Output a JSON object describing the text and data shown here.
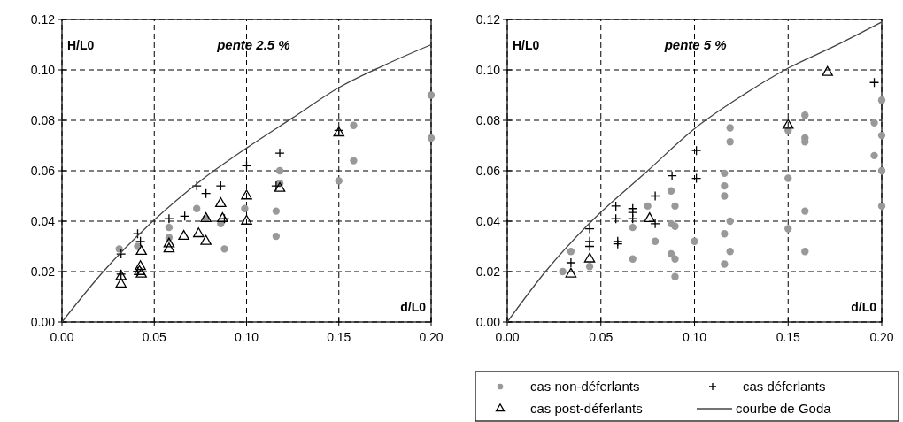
{
  "chart_data": [
    {
      "type": "scatter",
      "title": "pente 2.5 %",
      "xlabel": "d/L0",
      "ylabel": "H/L0",
      "xlim": [
        0,
        0.2
      ],
      "ylim": [
        0,
        0.12
      ],
      "xticks": [
        {
          "value": 0,
          "label": "0.00"
        },
        {
          "value": 0.05,
          "label": "0.05"
        },
        {
          "value": 0.1,
          "label": "0.10"
        },
        {
          "value": 0.15,
          "label": "0.15"
        },
        {
          "value": 0.2,
          "label": "0.20"
        }
      ],
      "yticks": [
        {
          "value": 0,
          "label": "0.00"
        },
        {
          "value": 0.02,
          "label": "0.02"
        },
        {
          "value": 0.04,
          "label": "0.04"
        },
        {
          "value": 0.06,
          "label": "0.06"
        },
        {
          "value": 0.08,
          "label": "0.08"
        },
        {
          "value": 0.1,
          "label": "0.10"
        },
        {
          "value": 0.12,
          "label": "0.12"
        }
      ],
      "grid": true,
      "legend": false,
      "series": [
        {
          "marker": "circle",
          "color": "#999999",
          "x": [
            0.031,
            0.041,
            0.058,
            0.058,
            0.073,
            0.078,
            0.086,
            0.088,
            0.099,
            0.116,
            0.116,
            0.118,
            0.118,
            0.15,
            0.158,
            0.158,
            0.2,
            0.2
          ],
          "values": [
            0.029,
            0.03,
            0.0375,
            0.0335,
            0.045,
            0.041,
            0.039,
            0.029,
            0.045,
            0.044,
            0.034,
            0.06,
            0.055,
            0.056,
            0.078,
            0.064,
            0.09,
            0.073
          ]
        },
        {
          "marker": "cross",
          "color": "#000000",
          "x": [
            0.032,
            0.032,
            0.041,
            0.0425,
            0.041,
            0.058,
            0.0665,
            0.073,
            0.078,
            0.086,
            0.088,
            0.1,
            0.118,
            0.116,
            0.15
          ],
          "values": [
            0.027,
            0.019,
            0.035,
            0.032,
            0.02,
            0.041,
            0.042,
            0.054,
            0.051,
            0.054,
            0.041,
            0.062,
            0.067,
            0.054,
            0.076
          ]
        },
        {
          "marker": "triangle",
          "color": "#000000",
          "x": [
            0.032,
            0.032,
            0.0425,
            0.042,
            0.043,
            0.043,
            0.058,
            0.058,
            0.066,
            0.074,
            0.078,
            0.078,
            0.086,
            0.087,
            0.1,
            0.1,
            0.118,
            0.15
          ],
          "values": [
            0.018,
            0.015,
            0.022,
            0.02,
            0.019,
            0.028,
            0.029,
            0.031,
            0.034,
            0.035,
            0.032,
            0.041,
            0.047,
            0.041,
            0.05,
            0.04,
            0.053,
            0.075
          ]
        },
        {
          "type": "line",
          "marker": "none",
          "color": "#444444",
          "x": [
            0,
            0.0224,
            0.05,
            0.075,
            0.1,
            0.125,
            0.15,
            0.175,
            0.2
          ],
          "values": [
            0,
            0.02,
            0.0405,
            0.056,
            0.069,
            0.081,
            0.093,
            0.102,
            0.11
          ]
        }
      ]
    },
    {
      "type": "scatter",
      "title": "pente 5 %",
      "xlabel": "d/L0",
      "ylabel": "H/L0",
      "xlim": [
        0,
        0.2
      ],
      "ylim": [
        0,
        0.12
      ],
      "xticks": [
        {
          "value": 0,
          "label": "0.00"
        },
        {
          "value": 0.05,
          "label": "0.05"
        },
        {
          "value": 0.1,
          "label": "0.10"
        },
        {
          "value": 0.15,
          "label": "0.15"
        },
        {
          "value": 0.2,
          "label": "0.20"
        }
      ],
      "yticks": [
        {
          "value": 0,
          "label": "0.00"
        },
        {
          "value": 0.02,
          "label": "0.02"
        },
        {
          "value": 0.04,
          "label": "0.04"
        },
        {
          "value": 0.06,
          "label": "0.06"
        },
        {
          "value": 0.08,
          "label": "0.08"
        },
        {
          "value": 0.1,
          "label": "0.10"
        },
        {
          "value": 0.12,
          "label": "0.12"
        }
      ],
      "grid": true,
      "legend": "bottom",
      "series": [
        {
          "name": "cas non-déferlants",
          "marker": "circle",
          "color": "#999999",
          "x": [
            0.0296,
            0.034,
            0.044,
            0.067,
            0.067,
            0.075,
            0.079,
            0.0875,
            0.0896,
            0.0875,
            0.0896,
            0.0875,
            0.0896,
            0.0896,
            0.1,
            0.119,
            0.119,
            0.116,
            0.116,
            0.116,
            0.119,
            0.116,
            0.119,
            0.116,
            0.15,
            0.15,
            0.15,
            0.159,
            0.159,
            0.159,
            0.159,
            0.159,
            0.2,
            0.196,
            0.2,
            0.196,
            0.2,
            0.2
          ],
          "values": [
            0.02,
            0.028,
            0.022,
            0.025,
            0.0375,
            0.046,
            0.032,
            0.052,
            0.046,
            0.039,
            0.038,
            0.027,
            0.025,
            0.018,
            0.032,
            0.077,
            0.0715,
            0.059,
            0.054,
            0.05,
            0.04,
            0.035,
            0.028,
            0.023,
            0.076,
            0.057,
            0.037,
            0.082,
            0.073,
            0.0715,
            0.044,
            0.028,
            0.088,
            0.079,
            0.074,
            0.066,
            0.06,
            0.046
          ]
        },
        {
          "name": "cas déferlants",
          "marker": "cross",
          "color": "#000000",
          "x": [
            0.034,
            0.044,
            0.044,
            0.044,
            0.058,
            0.058,
            0.059,
            0.059,
            0.067,
            0.067,
            0.067,
            0.079,
            0.079,
            0.088,
            0.101,
            0.101,
            0.196
          ],
          "values": [
            0.0235,
            0.037,
            0.032,
            0.03,
            0.046,
            0.041,
            0.032,
            0.031,
            0.045,
            0.0435,
            0.041,
            0.05,
            0.039,
            0.058,
            0.068,
            0.057,
            0.095
          ]
        },
        {
          "name": "cas post-déferlants",
          "marker": "triangle",
          "color": "#000000",
          "x": [
            0.034,
            0.044,
            0.076,
            0.171,
            0.15
          ],
          "values": [
            0.019,
            0.025,
            0.041,
            0.099,
            0.078
          ]
        },
        {
          "name": "courbe de Goda",
          "type": "line",
          "marker": "none",
          "color": "#444444",
          "x": [
            0,
            0.0204,
            0.045,
            0.075,
            0.1,
            0.125,
            0.15,
            0.175,
            0.2
          ],
          "values": [
            0,
            0.02,
            0.04,
            0.06,
            0.0767,
            0.0896,
            0.1007,
            0.1095,
            0.119
          ]
        }
      ]
    }
  ]
}
